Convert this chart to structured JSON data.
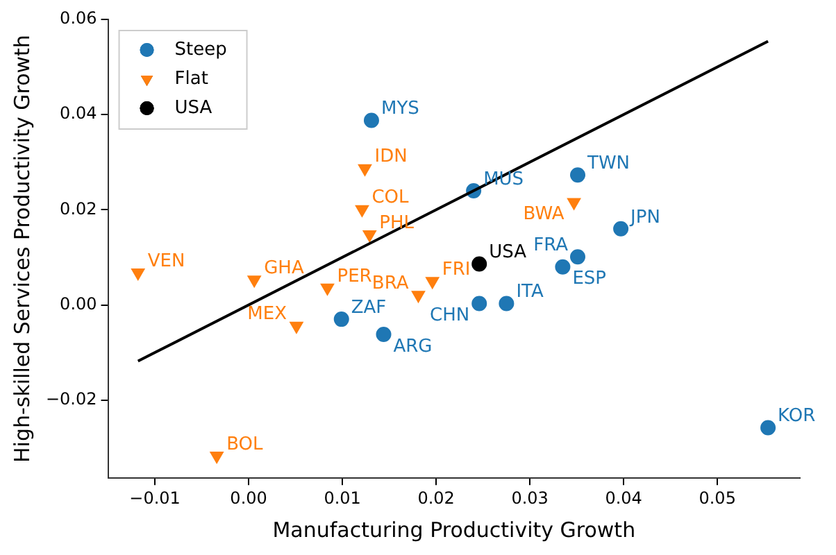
{
  "chart_data": {
    "type": "scatter",
    "xlabel": "Manufacturing Productivity Growth",
    "ylabel": "High-skilled Services Productivity Growth",
    "xlim": [
      -0.015,
      0.0588
    ],
    "ylim": [
      -0.0364,
      0.06
    ],
    "xticks": [
      -0.01,
      {
        "value": 0,
        "label": "0.00"
      },
      0.01,
      0.02,
      0.03,
      0.04,
      0.05
    ],
    "yticks": [
      -0.02,
      {
        "value": 0,
        "label": "0.00"
      },
      0.02,
      0.04,
      0.06
    ],
    "grid": false,
    "legend": "top left",
    "series": [
      {
        "name": "Steep",
        "color": "#1f77b4",
        "marker": "circle",
        "x": [
          0.0131,
          0.024,
          0.0351,
          0.0397,
          0.0351,
          0.0335,
          0.0246,
          0.0275,
          0.0099,
          0.0144,
          0.0554
        ],
        "values": [
          0.0388,
          0.024,
          0.0273,
          0.016,
          0.0101,
          0.008,
          0.0003,
          0.0003,
          -0.003,
          -0.0062,
          -0.0258
        ]
      },
      {
        "name": "Flat",
        "color": "#ff7f0e",
        "marker": "triangle",
        "x": [
          0.0124,
          0.0121,
          0.0129,
          -0.0118,
          0.0006,
          0.0084,
          0.0051,
          0.0196,
          0.0181,
          0.0347,
          -0.0034
        ],
        "values": [
          0.0287,
          0.0201,
          0.0148,
          0.0068,
          0.0053,
          0.0036,
          -0.0044,
          0.005,
          0.0021,
          0.0216,
          -0.0317
        ]
      },
      {
        "name": "USA",
        "color": "#000000",
        "marker": "circle",
        "x": [
          0.0246
        ],
        "values": [
          0.0086
        ]
      },
      {
        "type": "line",
        "color": "#000000",
        "marker": "none",
        "x": [
          -0.0118,
          0.0554
        ],
        "values": [
          -0.0118,
          0.0554
        ]
      }
    ],
    "annotations": [
      {
        "text": "MYS",
        "x": 0.0131,
        "y": 0.0388
      },
      {
        "text": "MUS",
        "x": 0.024,
        "y": 0.024
      },
      {
        "text": "TWN",
        "x": 0.0351,
        "y": 0.0273
      },
      {
        "text": "JPN",
        "x": 0.0397,
        "y": 0.016
      },
      {
        "text": "FRA",
        "x": 0.0351,
        "y": 0.0101
      },
      {
        "text": "ESP",
        "x": 0.0335,
        "y": 0.008
      },
      {
        "text": "CHN",
        "x": 0.0246,
        "y": 0.0003
      },
      {
        "text": "ITA",
        "x": 0.0275,
        "y": 0.0003
      },
      {
        "text": "ZAF",
        "x": 0.0099,
        "y": -0.003
      },
      {
        "text": "ARG",
        "x": 0.0144,
        "y": -0.0062
      },
      {
        "text": "KOR",
        "x": 0.0554,
        "y": -0.0258
      },
      {
        "text": "IDN",
        "x": 0.0124,
        "y": 0.0287
      },
      {
        "text": "COL",
        "x": 0.0121,
        "y": 0.0201
      },
      {
        "text": "PHL",
        "x": 0.0129,
        "y": 0.0148
      },
      {
        "text": "VEN",
        "x": -0.0118,
        "y": 0.0068
      },
      {
        "text": "GHA",
        "x": 0.0006,
        "y": 0.0053
      },
      {
        "text": "PER",
        "x": 0.0084,
        "y": 0.0036
      },
      {
        "text": "MEX",
        "x": 0.0051,
        "y": -0.0044
      },
      {
        "text": "FRI",
        "x": 0.0196,
        "y": 0.005
      },
      {
        "text": "BRA",
        "x": 0.0181,
        "y": 0.0021
      },
      {
        "text": "BWA",
        "x": 0.0347,
        "y": 0.0216
      },
      {
        "text": "BOL",
        "x": -0.0034,
        "y": -0.0317
      },
      {
        "text": "USA",
        "x": 0.0246,
        "y": 0.0086
      }
    ]
  }
}
